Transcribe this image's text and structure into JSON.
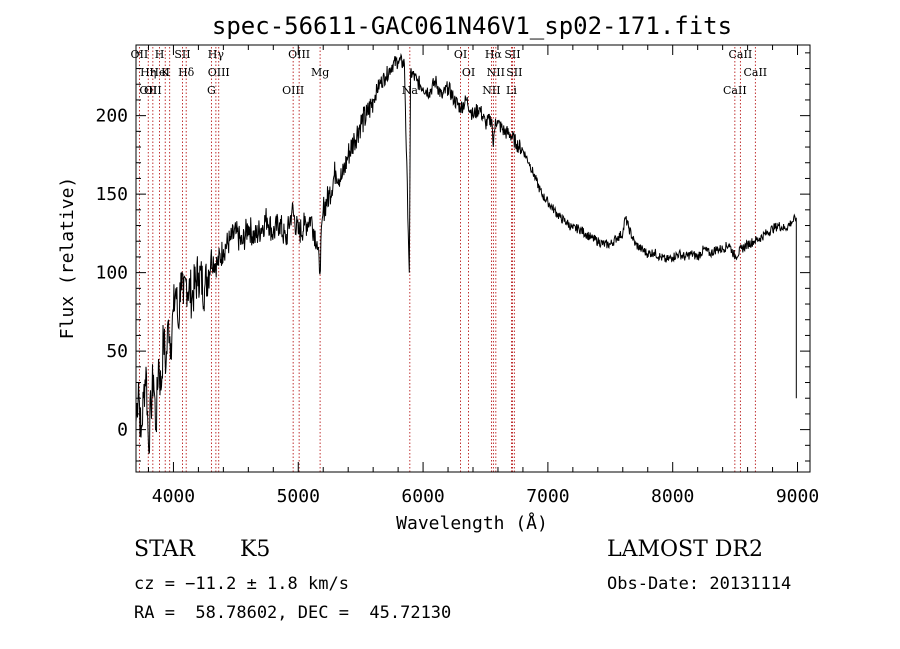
{
  "chart_data": {
    "type": "line",
    "title": "spec-56611-GAC061N46V1_sp02-171.fits",
    "xlabel": "Wavelength (Å)",
    "ylabel": "Flux (relative)",
    "xlim": [
      3700,
      9100
    ],
    "ylim": [
      -27,
      245
    ],
    "xticks": [
      4000,
      5000,
      6000,
      7000,
      8000,
      9000
    ],
    "yticks": [
      0,
      50,
      100,
      150,
      200
    ],
    "grid": false,
    "series": [
      {
        "values_x": [
          3700,
          3720,
          3740,
          3760,
          3780,
          3800,
          3820,
          3840,
          3860,
          3880,
          3900,
          3920,
          3940,
          3960,
          3980,
          4000,
          4020,
          4040,
          4060,
          4080,
          4100,
          4150,
          4200,
          4250,
          4300,
          4350,
          4400,
          4450,
          4500,
          4550,
          4600,
          4650,
          4700,
          4750,
          4800,
          4850,
          4900,
          4950,
          5000,
          5050,
          5100,
          5150,
          5170,
          5200,
          5250,
          5300,
          5350,
          5400,
          5450,
          5500,
          5550,
          5600,
          5650,
          5700,
          5750,
          5800,
          5850,
          5890,
          5900,
          5950,
          6000,
          6050,
          6100,
          6150,
          6200,
          6250,
          6300,
          6350,
          6400,
          6450,
          6500,
          6550,
          6563,
          6580,
          6600,
          6650,
          6700,
          6750,
          6800,
          6850,
          6900,
          6950,
          7000,
          7050,
          7100,
          7150,
          7200,
          7250,
          7300,
          7350,
          7400,
          7450,
          7500,
          7550,
          7600,
          7620,
          7650,
          7700,
          7750,
          7800,
          7850,
          7900,
          7950,
          8000,
          8050,
          8100,
          8150,
          8200,
          8250,
          8300,
          8350,
          8400,
          8450,
          8500,
          8550,
          8600,
          8650,
          8700,
          8750,
          8800,
          8850,
          8900,
          8950,
          8990
        ],
        "values_y": [
          5,
          30,
          -5,
          20,
          40,
          -10,
          15,
          35,
          0,
          45,
          25,
          60,
          40,
          70,
          55,
          75,
          90,
          65,
          100,
          80,
          95,
          85,
          100,
          90,
          110,
          105,
          115,
          120,
          125,
          118,
          130,
          122,
          128,
          135,
          125,
          132,
          120,
          140,
          125,
          130,
          135,
          120,
          100,
          140,
          150,
          165,
          160,
          175,
          185,
          195,
          200,
          210,
          220,
          225,
          232,
          235,
          233,
          100,
          228,
          222,
          218,
          215,
          222,
          212,
          218,
          210,
          205,
          210,
          200,
          205,
          195,
          198,
          180,
          198,
          195,
          190,
          188,
          182,
          178,
          170,
          160,
          150,
          145,
          140,
          135,
          132,
          128,
          128,
          125,
          122,
          120,
          118,
          118,
          122,
          125,
          135,
          128,
          118,
          115,
          112,
          113,
          110,
          108,
          110,
          112,
          110,
          112,
          110,
          115,
          112,
          115,
          115,
          118,
          110,
          115,
          118,
          120,
          122,
          125,
          128,
          130,
          128,
          132,
          135
        ]
      }
    ],
    "lines": [
      {
        "x": 3727,
        "labels": [
          "OII"
        ]
      },
      {
        "x": 3798,
        "labels": [
          "Hη",
          "OII"
        ]
      },
      {
        "x": 3835,
        "labels": [
          "OII"
        ]
      },
      {
        "x": 3889,
        "labels": [
          "H",
          "HeI"
        ]
      },
      {
        "x": 3934,
        "labels": [
          "K"
        ]
      },
      {
        "x": 3970,
        "labels": []
      },
      {
        "x": 4072,
        "labels": [
          "SII"
        ]
      },
      {
        "x": 4102,
        "labels": [
          "Hδ"
        ]
      },
      {
        "x": 4304,
        "labels": [
          "G"
        ]
      },
      {
        "x": 4340,
        "labels": [
          "Hγ"
        ]
      },
      {
        "x": 4363,
        "labels": [
          "OIII"
        ]
      },
      {
        "x": 4959,
        "labels": [
          "OIII"
        ]
      },
      {
        "x": 5007,
        "labels": [
          "OIII"
        ]
      },
      {
        "x": 5175,
        "labels": [
          "Mg"
        ]
      },
      {
        "x": 5894,
        "labels": [
          "Na"
        ]
      },
      {
        "x": 6300,
        "labels": [
          "OI"
        ]
      },
      {
        "x": 6364,
        "labels": [
          "OI"
        ]
      },
      {
        "x": 6548,
        "labels": [
          "NII"
        ]
      },
      {
        "x": 6563,
        "labels": [
          "Hα"
        ]
      },
      {
        "x": 6583,
        "labels": [
          "NII"
        ]
      },
      {
        "x": 6708,
        "labels": [
          "Li"
        ]
      },
      {
        "x": 6716,
        "labels": [
          "SII"
        ]
      },
      {
        "x": 6731,
        "labels": [
          "SII"
        ]
      },
      {
        "x": 8498,
        "labels": [
          "CaII"
        ]
      },
      {
        "x": 8542,
        "labels": [
          "CaII"
        ]
      },
      {
        "x": 8662,
        "labels": [
          "CaII"
        ]
      }
    ],
    "line_color": "#000000",
    "marker_color": "#b00000"
  },
  "info": {
    "class": "STAR",
    "subclass": "K5",
    "survey": "LAMOST DR2",
    "cz": "cz = −11.2 ± 1.8 km/s",
    "obs_date": "Obs-Date: 20131114",
    "coords": "RA =  58.78602, DEC =  45.72130"
  }
}
